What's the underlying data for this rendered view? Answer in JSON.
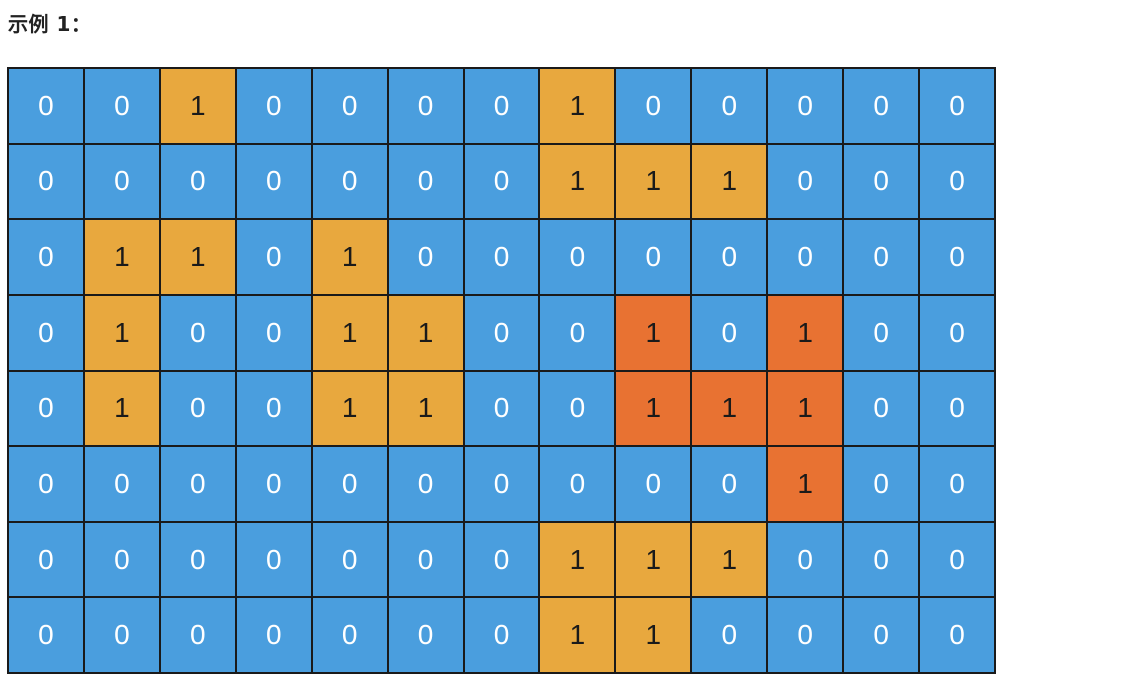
{
  "heading": "示例 1：",
  "colors": {
    "blue": "#4a9ede",
    "yellow": "#e8a83e",
    "orange": "#e87232"
  },
  "grid": [
    [
      "0",
      "0",
      "1",
      "0",
      "0",
      "0",
      "0",
      "1",
      "0",
      "0",
      "0",
      "0",
      "0"
    ],
    [
      "0",
      "0",
      "0",
      "0",
      "0",
      "0",
      "0",
      "1",
      "1",
      "1",
      "0",
      "0",
      "0"
    ],
    [
      "0",
      "1",
      "1",
      "0",
      "1",
      "0",
      "0",
      "0",
      "0",
      "0",
      "0",
      "0",
      "0"
    ],
    [
      "0",
      "1",
      "0",
      "0",
      "1",
      "1",
      "0",
      "0",
      "1",
      "0",
      "1",
      "0",
      "0"
    ],
    [
      "0",
      "1",
      "0",
      "0",
      "1",
      "1",
      "0",
      "0",
      "1",
      "1",
      "1",
      "0",
      "0"
    ],
    [
      "0",
      "0",
      "0",
      "0",
      "0",
      "0",
      "0",
      "0",
      "0",
      "0",
      "1",
      "0",
      "0"
    ],
    [
      "0",
      "0",
      "0",
      "0",
      "0",
      "0",
      "0",
      "1",
      "1",
      "1",
      "0",
      "0",
      "0"
    ],
    [
      "0",
      "0",
      "0",
      "0",
      "0",
      "0",
      "0",
      "1",
      "1",
      "0",
      "0",
      "0",
      "0"
    ]
  ],
  "cell_colors": [
    [
      "blue",
      "blue",
      "yellow",
      "blue",
      "blue",
      "blue",
      "blue",
      "yellow",
      "blue",
      "blue",
      "blue",
      "blue",
      "blue"
    ],
    [
      "blue",
      "blue",
      "blue",
      "blue",
      "blue",
      "blue",
      "blue",
      "yellow",
      "yellow",
      "yellow",
      "blue",
      "blue",
      "blue"
    ],
    [
      "blue",
      "yellow",
      "yellow",
      "blue",
      "yellow",
      "blue",
      "blue",
      "blue",
      "blue",
      "blue",
      "blue",
      "blue",
      "blue"
    ],
    [
      "blue",
      "yellow",
      "blue",
      "blue",
      "yellow",
      "yellow",
      "blue",
      "blue",
      "orange",
      "blue",
      "orange",
      "blue",
      "blue"
    ],
    [
      "blue",
      "yellow",
      "blue",
      "blue",
      "yellow",
      "yellow",
      "blue",
      "blue",
      "orange",
      "orange",
      "orange",
      "blue",
      "blue"
    ],
    [
      "blue",
      "blue",
      "blue",
      "blue",
      "blue",
      "blue",
      "blue",
      "blue",
      "blue",
      "blue",
      "orange",
      "blue",
      "blue"
    ],
    [
      "blue",
      "blue",
      "blue",
      "blue",
      "blue",
      "blue",
      "blue",
      "yellow",
      "yellow",
      "yellow",
      "blue",
      "blue",
      "blue"
    ],
    [
      "blue",
      "blue",
      "blue",
      "blue",
      "blue",
      "blue",
      "blue",
      "yellow",
      "yellow",
      "blue",
      "blue",
      "blue",
      "blue"
    ]
  ]
}
